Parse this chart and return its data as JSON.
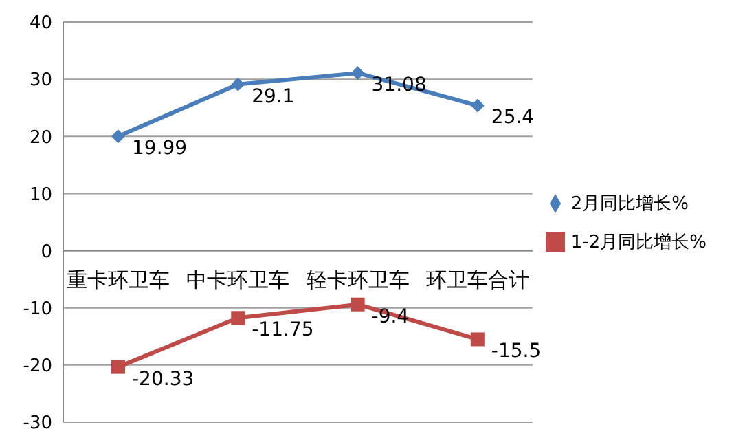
{
  "chart_data": {
    "type": "line",
    "categories": [
      "重卡环卫车",
      "中卡环卫车",
      "轻卡环卫车",
      "环卫车合计"
    ],
    "series": [
      {
        "name": "2月同比增长%",
        "color": "#4a7ebb",
        "marker": "diamond",
        "values": [
          19.99,
          29.1,
          31.08,
          25.4
        ]
      },
      {
        "name": "1-2月同比增长%",
        "color": "#be4b48",
        "marker": "square",
        "values": [
          -20.33,
          -11.75,
          -9.4,
          -15.5
        ]
      }
    ],
    "ylim": [
      -30,
      40
    ],
    "yticks": [
      -30,
      -20,
      -10,
      0,
      10,
      20,
      30,
      40
    ],
    "grid": "y",
    "legend": "right",
    "data_labels": true
  }
}
